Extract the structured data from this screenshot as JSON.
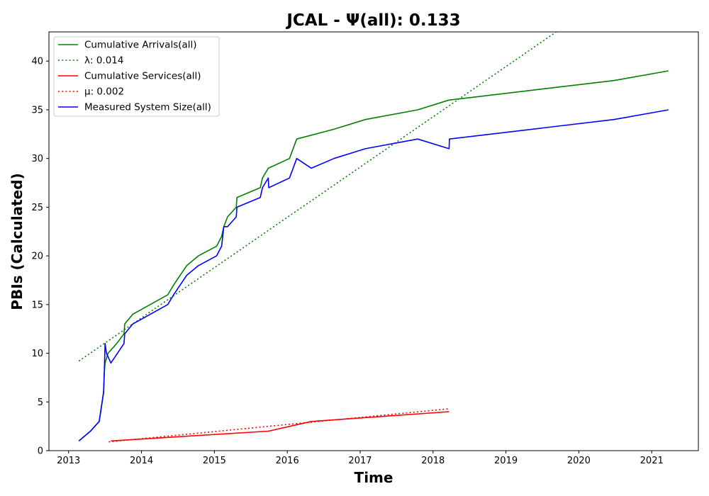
{
  "chart_data": {
    "type": "line",
    "title": "JCAL -  Ψ(all): 0.133",
    "xlabel": "Time",
    "ylabel": "PBIs (Calculated)",
    "xlim": [
      2012.73,
      2021.64
    ],
    "ylim": [
      0,
      43
    ],
    "x_ticks": [
      2013,
      2014,
      2015,
      2016,
      2017,
      2018,
      2019,
      2020,
      2021
    ],
    "y_ticks": [
      0,
      5,
      10,
      15,
      20,
      25,
      30,
      35,
      40
    ],
    "grid": false,
    "legend_position": "top-left",
    "series": [
      {
        "name": "Cumulative Arrivals(all)",
        "style": "solid",
        "color": "#008000",
        "x": [
          2013.14,
          2013.3,
          2013.42,
          2013.44,
          2013.48,
          2013.49,
          2013.5,
          2013.54,
          2013.66,
          2013.76,
          2013.77,
          2013.88,
          2014.36,
          2014.44,
          2014.62,
          2014.78,
          2015.03,
          2015.1,
          2015.13,
          2015.18,
          2015.3,
          2015.31,
          2015.63,
          2015.66,
          2015.74,
          2016.03,
          2016.13,
          2016.64,
          2017.07,
          2017.79,
          2018.22,
          2020.48,
          2021.23
        ],
        "y": [
          1,
          2,
          3,
          4,
          6,
          8,
          9,
          10,
          11,
          12,
          13,
          14,
          16,
          17,
          19,
          20,
          21,
          22,
          23,
          24,
          25,
          26,
          27,
          28,
          29,
          30,
          32,
          33,
          34,
          35,
          36,
          38,
          39
        ]
      },
      {
        "name": "λ: 0.014",
        "style": "dotted",
        "color": "#008000",
        "x": [
          2013.14,
          2019.69
        ],
        "y": [
          9.2,
          43
        ]
      },
      {
        "name": "Cumulative Services(all)",
        "style": "solid",
        "color": "#ff0000",
        "x": [
          2013.58,
          2015.74,
          2016.33,
          2018.22
        ],
        "y": [
          1,
          2,
          3,
          4
        ]
      },
      {
        "name": "μ: 0.002",
        "style": "dotted",
        "color": "#ff0000",
        "x": [
          2013.55,
          2018.22
        ],
        "y": [
          0.9,
          4.3
        ]
      },
      {
        "name": "Measured System Size(all)",
        "style": "solid",
        "color": "#0000ff",
        "x": [
          2013.14,
          2013.3,
          2013.42,
          2013.44,
          2013.48,
          2013.49,
          2013.5,
          2013.52,
          2013.58,
          2013.76,
          2013.77,
          2013.88,
          2014.36,
          2014.44,
          2014.62,
          2014.78,
          2015.03,
          2015.1,
          2015.13,
          2015.18,
          2015.3,
          2015.31,
          2015.63,
          2015.66,
          2015.74,
          2015.745,
          2016.03,
          2016.13,
          2016.33,
          2016.64,
          2017.07,
          2017.79,
          2018.22,
          2018.225,
          2020.48,
          2021.23
        ],
        "y": [
          1,
          2,
          3,
          4,
          6,
          8,
          11,
          10,
          9,
          11,
          12,
          13,
          15,
          16,
          18,
          19,
          20,
          21,
          23,
          23,
          24,
          25,
          26,
          27,
          28,
          27,
          28,
          30,
          29,
          30,
          31,
          32,
          31,
          32,
          34,
          35
        ]
      }
    ]
  }
}
